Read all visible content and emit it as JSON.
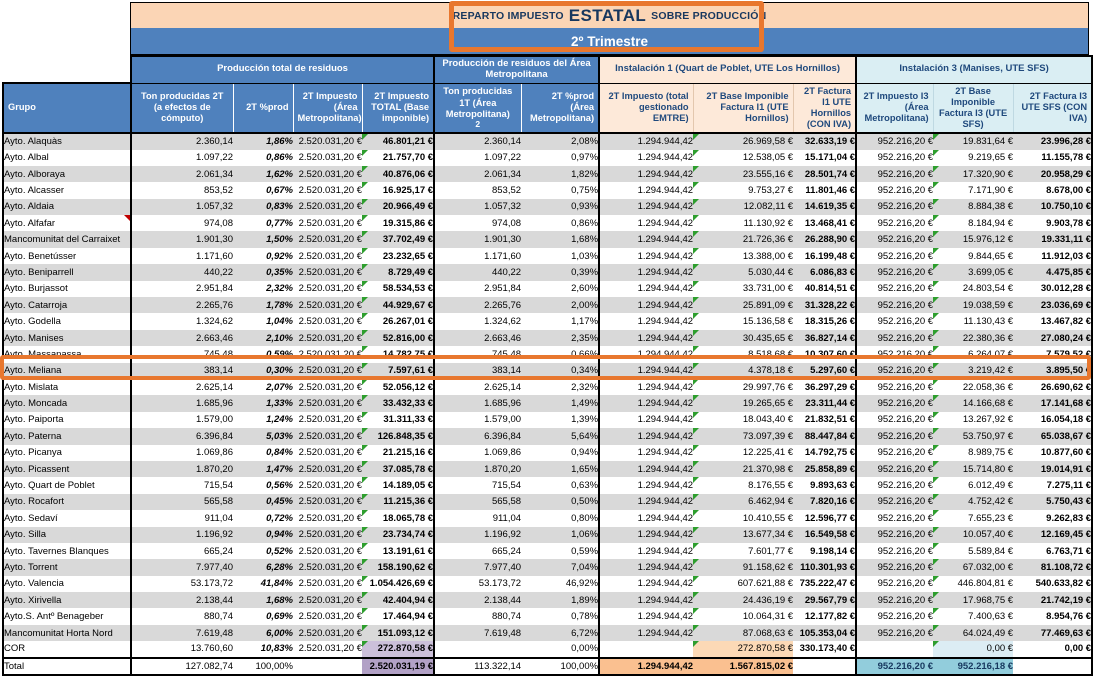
{
  "title": {
    "prefix": "REPARTO IMPUESTO",
    "emphasis": "ESTATAL",
    "suffix": "SOBRE PRODUCCIÓN",
    "quarter": "2º Trimestre"
  },
  "sections": [
    {
      "label": "Producción total de residuos",
      "span": 4,
      "style": "blue"
    },
    {
      "label": "Producción de residuos del Área Metropolitana",
      "span": 2,
      "style": "blue"
    },
    {
      "label": "Instalación 1 (Quart de Poblet, UTE Los Hornillos)",
      "span": 3,
      "style": "peach"
    },
    {
      "label": "Instalación 3 (Manises, UTE SFS)",
      "span": 3,
      "style": "lightblue"
    }
  ],
  "columns": [
    "Grupo",
    "Ton producidas 2T (a efectos de cómputo)",
    "2T %prod",
    "2T Impuesto (Área Metropolitana)",
    "2T Impuesto TOTAL (Base imponible)",
    "Ton producidas 1T (Área Metropolitana)",
    "2T %prod (Área Metropolitana)",
    "2T Impuesto (total gestionado EMTRE)",
    "2T Base Imponible Factura I1 (UTE Hornillos)",
    "2T Factura I1 UTE Hornillos (CON IVA)",
    "2T Impuesto I3 (Área Metropolitana)",
    "2T Base Imponible Factura I3 (UTE SFS)",
    "2T Factura I3 UTE SFS (CON IVA)"
  ],
  "column_footnote": {
    "column_index": 5,
    "text": "2"
  },
  "rows": [
    [
      "Ayto. Alaquàs",
      "2.360,14",
      "1,86%",
      "2.520.031,20 €",
      "46.801,21 €",
      "2.360,14",
      "2,08%",
      "1.294.944,42",
      "26.969,58 €",
      "32.633,19 €",
      "952.216,20 €",
      "19.831,64 €",
      "23.996,28 €"
    ],
    [
      "Ayto. Albal",
      "1.097,22",
      "0,86%",
      "2.520.031,20 €",
      "21.757,70 €",
      "1.097,22",
      "0,97%",
      "1.294.944,42",
      "12.538,05 €",
      "15.171,04 €",
      "952.216,20 €",
      "9.219,65 €",
      "11.155,78 €"
    ],
    [
      "Ayto. Alboraya",
      "2.061,34",
      "1,62%",
      "2.520.031,20 €",
      "40.876,06 €",
      "2.061,34",
      "1,82%",
      "1.294.944,42",
      "23.555,16 €",
      "28.501,74 €",
      "952.216,20 €",
      "17.320,90 €",
      "20.958,29 €"
    ],
    [
      "Ayto. Alcasser",
      "853,52",
      "0,67%",
      "2.520.031,20 €",
      "16.925,17 €",
      "853,52",
      "0,75%",
      "1.294.944,42",
      "9.753,27 €",
      "11.801,46 €",
      "952.216,20 €",
      "7.171,90 €",
      "8.678,00 €"
    ],
    [
      "Ayto. Aldaia",
      "1.057,32",
      "0,83%",
      "2.520.031,20 €",
      "20.966,49 €",
      "1.057,32",
      "0,93%",
      "1.294.944,42",
      "12.082,11 €",
      "14.619,35 €",
      "952.216,20 €",
      "8.884,38 €",
      "10.750,10 €"
    ],
    [
      "Ayto. Alfafar",
      "974,08",
      "0,77%",
      "2.520.031,20 €",
      "19.315,86 €",
      "974,08",
      "0,86%",
      "1.294.944,42",
      "11.130,92 €",
      "13.468,41 €",
      "952.216,20 €",
      "8.184,94 €",
      "9.903,78 €"
    ],
    [
      "Mancomunitat del Carraixet",
      "1.901,30",
      "1,50%",
      "2.520.031,20 €",
      "37.702,49 €",
      "1.901,30",
      "1,68%",
      "1.294.944,42",
      "21.726,36 €",
      "26.288,90 €",
      "952.216,20 €",
      "15.976,12 €",
      "19.331,11 €"
    ],
    [
      "Ayto. Benetússer",
      "1.171,60",
      "0,92%",
      "2.520.031,20 €",
      "23.232,65 €",
      "1.171,60",
      "1,03%",
      "1.294.944,42",
      "13.388,00 €",
      "16.199,48 €",
      "952.216,20 €",
      "9.844,65 €",
      "11.912,03 €"
    ],
    [
      "Ayto. Beniparrell",
      "440,22",
      "0,35%",
      "2.520.031,20 €",
      "8.729,49 €",
      "440,22",
      "0,39%",
      "1.294.944,42",
      "5.030,44 €",
      "6.086,83 €",
      "952.216,20 €",
      "3.699,05 €",
      "4.475,85 €"
    ],
    [
      "Ayto. Burjassot",
      "2.951,84",
      "2,32%",
      "2.520.031,20 €",
      "58.534,53 €",
      "2.951,84",
      "2,60%",
      "1.294.944,42",
      "33.731,00 €",
      "40.814,51 €",
      "952.216,20 €",
      "24.803,54 €",
      "30.012,28 €"
    ],
    [
      "Ayto. Catarroja",
      "2.265,76",
      "1,78%",
      "2.520.031,20 €",
      "44.929,67 €",
      "2.265,76",
      "2,00%",
      "1.294.944,42",
      "25.891,09 €",
      "31.328,22 €",
      "952.216,20 €",
      "19.038,59 €",
      "23.036,69 €"
    ],
    [
      "Ayto. Godella",
      "1.324,62",
      "1,04%",
      "2.520.031,20 €",
      "26.267,01 €",
      "1.324,62",
      "1,17%",
      "1.294.944,42",
      "15.136,58 €",
      "18.315,26 €",
      "952.216,20 €",
      "11.130,43 €",
      "13.467,82 €"
    ],
    [
      "Ayto. Manises",
      "2.663,46",
      "2,10%",
      "2.520.031,20 €",
      "52.816,00 €",
      "2.663,46",
      "2,35%",
      "1.294.944,42",
      "30.435,65 €",
      "36.827,14 €",
      "952.216,20 €",
      "22.380,36 €",
      "27.080,24 €"
    ],
    [
      "Ayto. Massanassa",
      "745,48",
      "0,59%",
      "2.520.031,20 €",
      "14.782,75 €",
      "745,48",
      "0,66%",
      "1.294.944,42",
      "8.518,68 €",
      "10.307,60 €",
      "952.216,20 €",
      "6.264,07 €",
      "7.579,52 €"
    ],
    [
      "Ayto. Meliana",
      "383,14",
      "0,30%",
      "2.520.031,20 €",
      "7.597,61 €",
      "383,14",
      "0,34%",
      "1.294.944,42",
      "4.378,18 €",
      "5.297,60 €",
      "952.216,20 €",
      "3.219,42 €",
      "3.895,50 €"
    ],
    [
      "Ayto. Mislata",
      "2.625,14",
      "2,07%",
      "2.520.031,20 €",
      "52.056,12 €",
      "2.625,14",
      "2,32%",
      "1.294.944,42",
      "29.997,76 €",
      "36.297,29 €",
      "952.216,20 €",
      "22.058,36 €",
      "26.690,62 €"
    ],
    [
      "Ayto. Moncada",
      "1.685,96",
      "1,33%",
      "2.520.031,20 €",
      "33.432,33 €",
      "1.685,96",
      "1,49%",
      "1.294.944,42",
      "19.265,65 €",
      "23.311,44 €",
      "952.216,20 €",
      "14.166,68 €",
      "17.141,68 €"
    ],
    [
      "Ayto. Paiporta",
      "1.579,00",
      "1,24%",
      "2.520.031,20 €",
      "31.311,33 €",
      "1.579,00",
      "1,39%",
      "1.294.944,42",
      "18.043,40 €",
      "21.832,51 €",
      "952.216,20 €",
      "13.267,92 €",
      "16.054,18 €"
    ],
    [
      "Ayto. Paterna",
      "6.396,84",
      "5,03%",
      "2.520.031,20 €",
      "126.848,35 €",
      "6.396,84",
      "5,64%",
      "1.294.944,42",
      "73.097,39 €",
      "88.447,84 €",
      "952.216,20 €",
      "53.750,97 €",
      "65.038,67 €"
    ],
    [
      "Ayto. Picanya",
      "1.069,86",
      "0,84%",
      "2.520.031,20 €",
      "21.215,16 €",
      "1.069,86",
      "0,94%",
      "1.294.944,42",
      "12.225,41 €",
      "14.792,75 €",
      "952.216,20 €",
      "8.989,75 €",
      "10.877,60 €"
    ],
    [
      "Ayto. Picassent",
      "1.870,20",
      "1,47%",
      "2.520.031,20 €",
      "37.085,78 €",
      "1.870,20",
      "1,65%",
      "1.294.944,42",
      "21.370,98 €",
      "25.858,89 €",
      "952.216,20 €",
      "15.714,80 €",
      "19.014,91 €"
    ],
    [
      "Ayto. Quart de Poblet",
      "715,54",
      "0,56%",
      "2.520.031,20 €",
      "14.189,05 €",
      "715,54",
      "0,63%",
      "1.294.944,42",
      "8.176,55 €",
      "9.893,63 €",
      "952.216,20 €",
      "6.012,49 €",
      "7.275,11 €"
    ],
    [
      "Ayto. Rocafort",
      "565,58",
      "0,45%",
      "2.520.031,20 €",
      "11.215,36 €",
      "565,58",
      "0,50%",
      "1.294.944,42",
      "6.462,94 €",
      "7.820,16 €",
      "952.216,20 €",
      "4.752,42 €",
      "5.750,43 €"
    ],
    [
      "Ayto. Sedaví",
      "911,04",
      "0,72%",
      "2.520.031,20 €",
      "18.065,78 €",
      "911,04",
      "0,80%",
      "1.294.944,42",
      "10.410,55 €",
      "12.596,77 €",
      "952.216,20 €",
      "7.655,23 €",
      "9.262,83 €"
    ],
    [
      "Ayto. Silla",
      "1.196,92",
      "0,94%",
      "2.520.031,20 €",
      "23.734,74 €",
      "1.196,92",
      "1,06%",
      "1.294.944,42",
      "13.677,34 €",
      "16.549,58 €",
      "952.216,20 €",
      "10.057,40 €",
      "12.169,45 €"
    ],
    [
      "Ayto. Tavernes Blanques",
      "665,24",
      "0,52%",
      "2.520.031,20 €",
      "13.191,61 €",
      "665,24",
      "0,59%",
      "1.294.944,42",
      "7.601,77 €",
      "9.198,14 €",
      "952.216,20 €",
      "5.589,84 €",
      "6.763,71 €"
    ],
    [
      "Ayto. Torrent",
      "7.977,40",
      "6,28%",
      "2.520.031,20 €",
      "158.190,62 €",
      "7.977,40",
      "7,04%",
      "1.294.944,42",
      "91.158,62 €",
      "110.301,93 €",
      "952.216,20 €",
      "67.032,00 €",
      "81.108,72 €"
    ],
    [
      "Ayto. Valencia",
      "53.173,72",
      "41,84%",
      "2.520.031,20 €",
      "1.054.426,69 €",
      "53.173,72",
      "46,92%",
      "1.294.944,42",
      "607.621,88 €",
      "735.222,47 €",
      "952.216,20 €",
      "446.804,81 €",
      "540.633,82 €"
    ],
    [
      "Ayto. Xirivella",
      "2.138,44",
      "1,68%",
      "2.520.031,20 €",
      "42.404,94 €",
      "2.138,44",
      "1,89%",
      "1.294.944,42",
      "24.436,19 €",
      "29.567,79 €",
      "952.216,20 €",
      "17.968,75 €",
      "21.742,19 €"
    ],
    [
      "Ayto.S. Antº Benageber",
      "880,74",
      "0,69%",
      "2.520.031,20 €",
      "17.464,94 €",
      "880,74",
      "0,78%",
      "1.294.944,42",
      "10.064,31 €",
      "12.177,82 €",
      "952.216,20 €",
      "7.400,63 €",
      "8.954,76 €"
    ],
    [
      "Mancomunitat Horta Nord",
      "7.619,48",
      "6,00%",
      "2.520.031,20 €",
      "151.093,12 €",
      "7.619,48",
      "6,72%",
      "1.294.944,42",
      "87.068,63 €",
      "105.353,04 €",
      "952.216,20 €",
      "64.024,49 €",
      "77.469,63 €"
    ],
    [
      "COR",
      "13.760,60",
      "10,83%",
      "2.520.031,20 €",
      "272.870,58 €",
      "",
      "0,00%",
      "",
      "272.870,58 €",
      "330.173,40 €",
      "",
      "0,00 €",
      "0,00 €"
    ]
  ],
  "total": [
    "Total",
    "127.082,74",
    "100,00%",
    "",
    "2.520.031,19 €",
    "113.322,14",
    "100,00%",
    "1.294.944,42",
    "1.567.815,02 €",
    "",
    "952.216,20 €",
    "952.216,18 €",
    ""
  ],
  "flags": {
    "error_flag_columns": [
      4,
      8,
      11
    ],
    "comment_flag_row": "Ayto. Alfafar"
  },
  "annotations": {
    "color": "#E8772E",
    "boxes": [
      "title-and-quarter",
      "row-ayto-meliana"
    ]
  },
  "colors": {
    "header_blue": "#4F81BD",
    "band_peach": "#FBD5B5",
    "instalacion1_bg": "#FDE9D9",
    "instalacion3_bg": "#DAEEF3",
    "zebra_gray": "#D9D9D9",
    "total_purple": "#B2A1C6",
    "cor_purple": "#CCC0DA",
    "total_orange": "#FAC090",
    "cor_orange": "#FCD9B6",
    "total_blue": "#92CDDC",
    "cor_blue": "#DCEDF4",
    "error_flag_green": "#2E9E2E",
    "comment_flag_red": "#C00000",
    "annotation_orange": "#E8772E"
  }
}
